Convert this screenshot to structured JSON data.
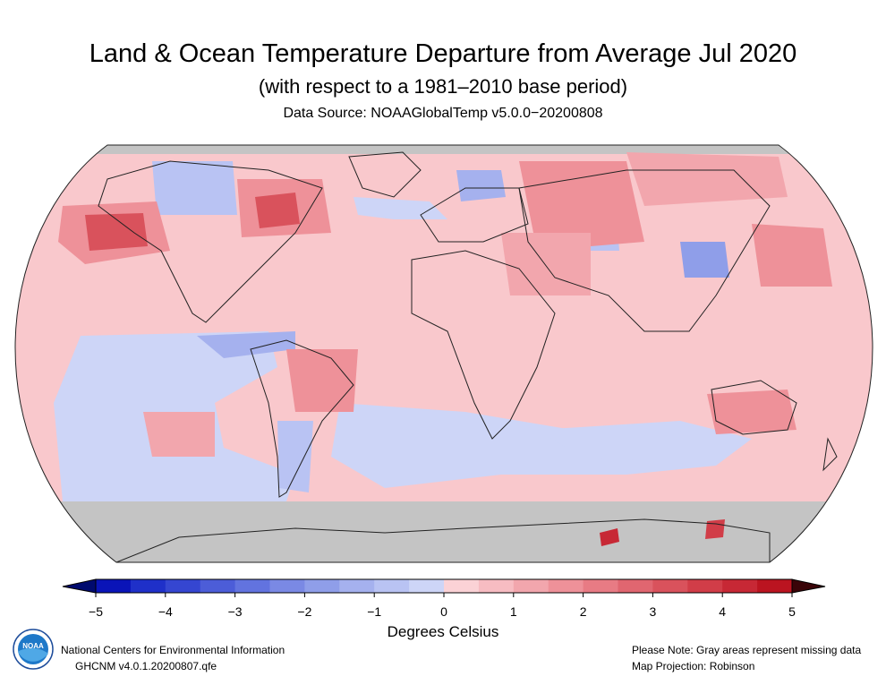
{
  "title": "Land & Ocean Temperature Departure from Average Jul 2020",
  "subtitle": "(with respect to a 1981–2010 base period)",
  "source": "Data Source: NOAAGlobalTemp v5.0.0−20200808",
  "colorbar": {
    "min": -5,
    "max": 5,
    "tick_labels": [
      "−5",
      "−4",
      "−3",
      "−2",
      "−1",
      "0",
      "1",
      "2",
      "3",
      "4",
      "5"
    ],
    "label": "Degrees Celsius",
    "cold_colors": [
      "#0a14b8",
      "#1f30c9",
      "#3546d1",
      "#4c5dd8",
      "#6273df",
      "#7a89e4",
      "#8f9ee9",
      "#a5b1ee",
      "#b9c3f3",
      "#cdd5f7"
    ],
    "warm_colors": [
      "#fbd2d6",
      "#f7bcc2",
      "#f2a6ad",
      "#ee9199",
      "#e87b84",
      "#e06670",
      "#d9525c",
      "#d13d48",
      "#c72835",
      "#bb1420"
    ],
    "end_colors": {
      "low": "#000a6e",
      "high": "#3a0408"
    }
  },
  "map": {
    "projection_label": "Map Projection: Robinson",
    "missing_color": "#c4c4c4",
    "ocean_base_color": "#f9c8cc"
  },
  "footer": {
    "org": "National Centers for Environmental Information",
    "version": "GHCNM v4.0.1.20200807.qfe",
    "note": "Please Note: Gray areas represent missing data",
    "projection": "Map Projection: Robinson"
  },
  "logo": {
    "text": "NOAA"
  }
}
